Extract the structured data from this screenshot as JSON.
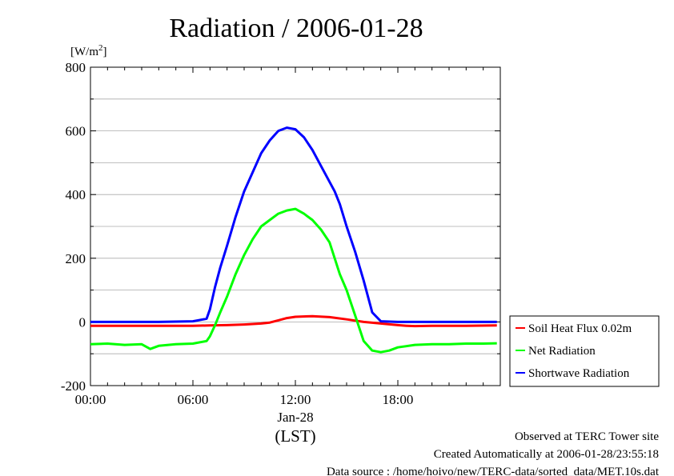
{
  "chart_data": {
    "type": "line",
    "title": "Radiation / 2006-01-28",
    "ylabel_unit": "[W/m",
    "ylabel_unit_sup": "2",
    "ylabel_unit_close": "]",
    "xlabel": "(LST)",
    "date_label": "Jan-28",
    "x_ticks": [
      "00:00",
      "06:00",
      "12:00",
      "18:00"
    ],
    "y_ticks": [
      "800",
      "600",
      "400",
      "200",
      "0",
      "-200"
    ],
    "xlim": [
      0,
      24
    ],
    "ylim": [
      -200,
      800
    ],
    "grid": true,
    "legend_position": "right",
    "series": [
      {
        "name": "Soil Heat Flux 0.02m",
        "color": "#ff0000",
        "x": [
          0,
          2,
          4,
          6,
          7,
          8,
          9,
          10,
          10.5,
          11,
          11.5,
          12,
          13,
          14,
          15,
          16,
          17,
          18,
          18.5,
          19,
          20,
          22,
          23.8
        ],
        "y": [
          -12,
          -12,
          -12,
          -12,
          -11,
          -10,
          -8,
          -5,
          -2,
          5,
          12,
          16,
          18,
          15,
          8,
          0,
          -5,
          -10,
          -12,
          -13,
          -12,
          -12,
          -11
        ]
      },
      {
        "name": "Net Radiation",
        "color": "#00ff00",
        "x": [
          0,
          1,
          2,
          3,
          3.5,
          4,
          5,
          6,
          6.8,
          7,
          7.3,
          7.6,
          8,
          8.5,
          9,
          9.5,
          10,
          10.5,
          11,
          11.5,
          12,
          12.5,
          13,
          13.5,
          14,
          14.3,
          14.6,
          15,
          15.5,
          16,
          16.5,
          17,
          17.5,
          18,
          19,
          20,
          21,
          22,
          23,
          23.8
        ],
        "y": [
          -70,
          -68,
          -72,
          -70,
          -85,
          -75,
          -70,
          -68,
          -60,
          -45,
          -10,
          30,
          80,
          150,
          210,
          260,
          300,
          320,
          340,
          350,
          355,
          340,
          320,
          290,
          250,
          200,
          150,
          100,
          20,
          -60,
          -90,
          -95,
          -90,
          -80,
          -72,
          -70,
          -70,
          -68,
          -68,
          -67
        ]
      },
      {
        "name": "Shortwave Radiation",
        "color": "#0000ff",
        "x": [
          0,
          2,
          4,
          6,
          6.8,
          7,
          7.3,
          7.6,
          8,
          8.5,
          9,
          9.5,
          10,
          10.5,
          11,
          11.5,
          12,
          12.5,
          13,
          13.5,
          14,
          14.3,
          14.6,
          15,
          15.5,
          16,
          16.5,
          17,
          18,
          20,
          22,
          23.8
        ],
        "y": [
          0,
          0,
          0,
          2,
          10,
          40,
          110,
          170,
          240,
          330,
          410,
          470,
          530,
          570,
          600,
          610,
          605,
          580,
          540,
          490,
          440,
          410,
          370,
          300,
          220,
          130,
          30,
          2,
          0,
          0,
          0,
          0
        ]
      }
    ]
  },
  "footer": {
    "line1": "Observed at TERC Tower site",
    "line2": "Created Automatically at 2006-01-28/23:55:18",
    "line3": "Data source : /home/hoivo/new/TERC-data/sorted_data/MET.10s.dat"
  }
}
